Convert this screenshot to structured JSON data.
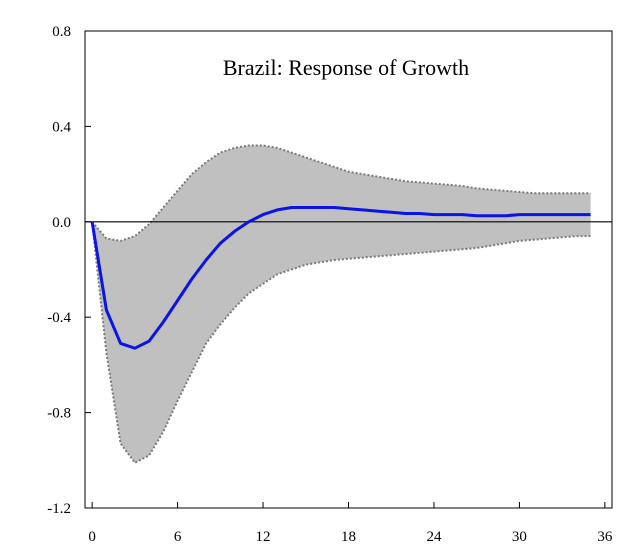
{
  "chart_data": {
    "type": "line",
    "title": "Brazil: Response of Growth",
    "xlabel": "",
    "ylabel": "",
    "xlim": [
      -0.5,
      36.5
    ],
    "ylim": [
      -1.2,
      0.8
    ],
    "x_ticks": [
      0,
      6,
      12,
      18,
      24,
      30,
      36
    ],
    "y_ticks": [
      0.8,
      0.4,
      0.0,
      -0.4,
      -0.8,
      -1.2
    ],
    "y_tick_labels": [
      "0.8",
      "0.4",
      "0.0",
      "-0.4",
      "-0.8",
      "-1.2"
    ],
    "x_tick_labels": [
      "0",
      "6",
      "12",
      "18",
      "24",
      "30",
      "36"
    ],
    "zero_line": true,
    "grid": false,
    "colors": {
      "response": "#0a14e6",
      "band_fill": "#c0c0c0",
      "band_edge": "#7a7a7a",
      "axis": "#000000"
    },
    "x": [
      0,
      1,
      2,
      3,
      4,
      5,
      6,
      7,
      8,
      9,
      10,
      11,
      12,
      13,
      14,
      15,
      16,
      17,
      18,
      19,
      20,
      21,
      22,
      23,
      24,
      25,
      26,
      27,
      28,
      29,
      30,
      31,
      32,
      33,
      34,
      35
    ],
    "series": [
      {
        "role": "response",
        "values": [
          0.0,
          -0.37,
          -0.51,
          -0.53,
          -0.5,
          -0.42,
          -0.33,
          -0.24,
          -0.16,
          -0.09,
          -0.04,
          0.0,
          0.03,
          0.05,
          0.06,
          0.06,
          0.06,
          0.06,
          0.055,
          0.05,
          0.045,
          0.04,
          0.035,
          0.035,
          0.03,
          0.03,
          0.03,
          0.025,
          0.025,
          0.025,
          0.03,
          0.03,
          0.03,
          0.03,
          0.03,
          0.03
        ]
      },
      {
        "role": "upper-band",
        "values": [
          0.0,
          -0.07,
          -0.08,
          -0.06,
          -0.01,
          0.06,
          0.13,
          0.2,
          0.25,
          0.29,
          0.31,
          0.32,
          0.32,
          0.31,
          0.29,
          0.27,
          0.25,
          0.23,
          0.21,
          0.2,
          0.19,
          0.18,
          0.17,
          0.165,
          0.16,
          0.155,
          0.15,
          0.14,
          0.135,
          0.13,
          0.125,
          0.12,
          0.12,
          0.12,
          0.12,
          0.12
        ]
      },
      {
        "role": "lower-band",
        "values": [
          0.0,
          -0.55,
          -0.93,
          -1.01,
          -0.98,
          -0.88,
          -0.75,
          -0.63,
          -0.51,
          -0.43,
          -0.36,
          -0.3,
          -0.26,
          -0.22,
          -0.2,
          -0.18,
          -0.17,
          -0.16,
          -0.155,
          -0.15,
          -0.145,
          -0.14,
          -0.135,
          -0.13,
          -0.125,
          -0.12,
          -0.115,
          -0.11,
          -0.1,
          -0.09,
          -0.08,
          -0.075,
          -0.07,
          -0.065,
          -0.06,
          -0.06
        ]
      }
    ]
  }
}
